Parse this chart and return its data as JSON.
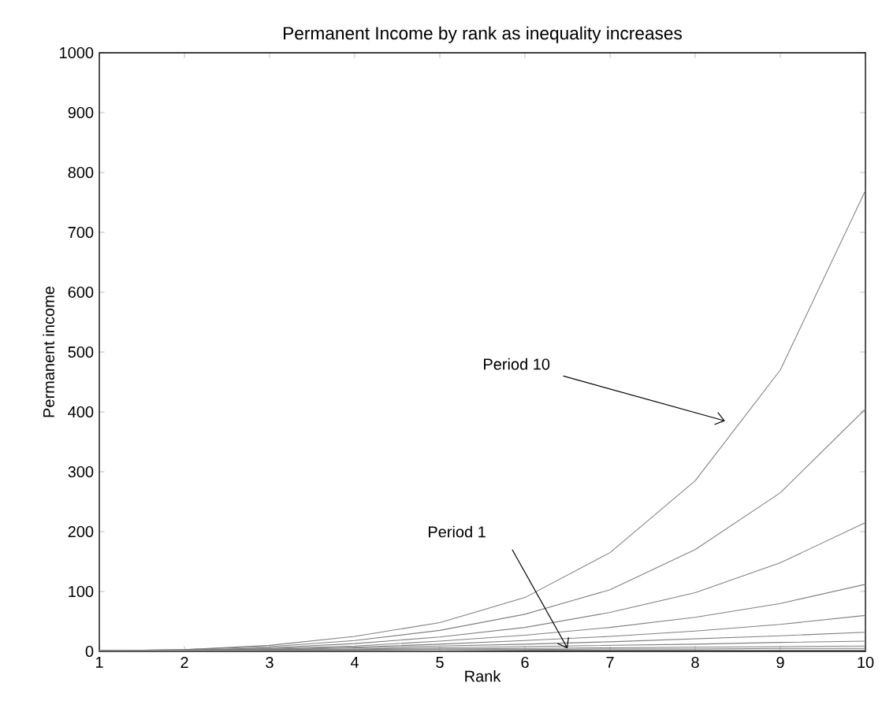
{
  "chart_data": {
    "type": "line",
    "title": "Permanent Income by rank as inequality increases",
    "xlabel": "Rank",
    "ylabel": "Permanent income",
    "x": [
      1,
      2,
      3,
      4,
      5,
      6,
      7,
      8,
      9,
      10
    ],
    "series": [
      {
        "color": "#808080",
        "values": [
          1,
          3,
          10,
          25,
          48,
          90,
          165,
          285,
          470,
          770
        ]
      },
      {
        "color": "#808080",
        "values": [
          1,
          3,
          8,
          18,
          35,
          62,
          103,
          170,
          265,
          405
        ]
      },
      {
        "color": "#808080",
        "values": [
          1,
          2,
          6,
          13,
          24,
          40,
          65,
          98,
          148,
          215
        ]
      },
      {
        "color": "#808080",
        "values": [
          1,
          2,
          5,
          9,
          17,
          27,
          40,
          57,
          80,
          112
        ]
      },
      {
        "color": "#808080",
        "values": [
          1,
          2,
          4,
          7,
          12,
          18,
          25,
          34,
          45,
          60
        ]
      },
      {
        "color": "#808080",
        "values": [
          1,
          2,
          3,
          6,
          9,
          12,
          16,
          21,
          26,
          32
        ]
      },
      {
        "color": "#808080",
        "values": [
          1,
          2,
          3,
          4,
          6,
          8,
          10,
          12,
          15,
          17
        ]
      },
      {
        "color": "#808080",
        "values": [
          1,
          2,
          2,
          3,
          4,
          5,
          6,
          7,
          8,
          9
        ]
      },
      {
        "color": "#808080",
        "values": [
          1,
          1,
          2,
          2,
          3,
          3,
          4,
          4,
          5,
          5
        ]
      },
      {
        "color": "#808080",
        "values": [
          1,
          1,
          1,
          1,
          1,
          2,
          2,
          2,
          2,
          2
        ]
      }
    ],
    "annotations": [
      "Period 10",
      "Period 1"
    ],
    "xlim": [
      1,
      10
    ],
    "ylim": [
      0,
      1000
    ],
    "xticks": [
      1,
      2,
      3,
      4,
      5,
      6,
      7,
      8,
      9,
      10
    ],
    "yticks": [
      0,
      100,
      200,
      300,
      400,
      500,
      600,
      700,
      800,
      900,
      1000
    ],
    "marker": "none",
    "line_style": "solid"
  }
}
